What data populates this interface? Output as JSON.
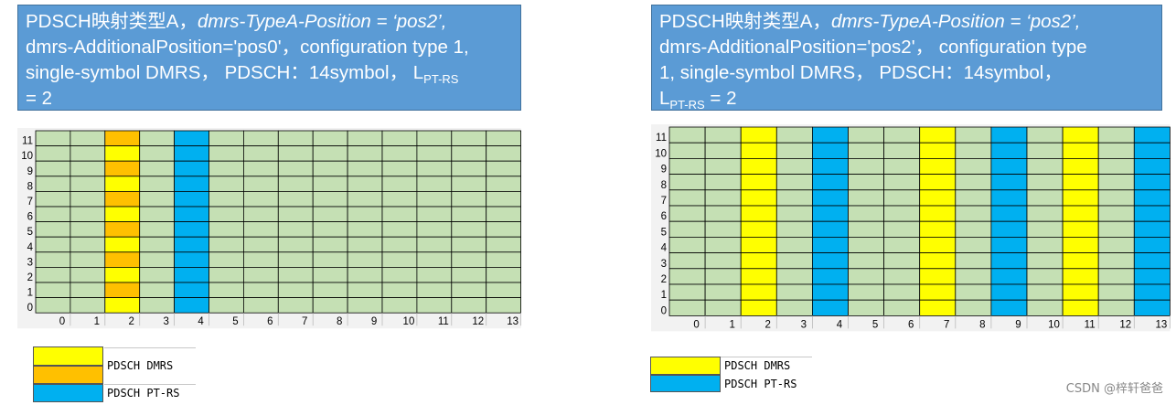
{
  "colors": {
    "pdsch": "#c5e0b4",
    "dmrs": "#ffff00",
    "dmrs_alt": "#ffc000",
    "ptrs": "#00b0f0",
    "grid_line": "#000000"
  },
  "left": {
    "title": {
      "part1": "PDSCH映射类型A，",
      "part2_italic": "dmrs-TypeA-Position = ‘pos2’,",
      "line2": "dmrs-AdditionalPosition='pos0'，configuration type 1,",
      "line3": "single-symbol DMRS， PDSCH：14symbol，   L",
      "sub": "PT-RS",
      "tail": " = 2"
    },
    "grid": {
      "symbols": [
        "0",
        "1",
        "2",
        "3",
        "4",
        "5",
        "6",
        "7",
        "8",
        "9",
        "10",
        "11",
        "12",
        "13"
      ],
      "subcarriers": [
        "11",
        "10",
        "9",
        "8",
        "7",
        "6",
        "5",
        "4",
        "3",
        "2",
        "1",
        "0"
      ],
      "dmrs_columns": [
        2
      ],
      "ptrs_columns": [
        4
      ]
    },
    "legend": [
      {
        "color": "dmrs",
        "label": "PDSCH DMRS"
      },
      {
        "color": "dmrs_alt",
        "label": ""
      },
      {
        "color": "ptrs",
        "label": "PDSCH PT-RS"
      }
    ]
  },
  "right": {
    "title": {
      "part1": "PDSCH映射类型A，",
      "part2_italic": "dmrs-TypeA-Position = ‘pos2’,",
      "line2": "dmrs-AdditionalPosition='pos2'， configuration type",
      "line3": "1, single-symbol DMRS， PDSCH：14symbol，",
      "sub_prefix": "L",
      "sub": "PT-RS",
      "tail": " = 2"
    },
    "grid": {
      "symbols": [
        "0",
        "1",
        "2",
        "3",
        "4",
        "5",
        "6",
        "7",
        "8",
        "9",
        "10",
        "11",
        "12",
        "13"
      ],
      "subcarriers": [
        "11",
        "10",
        "9",
        "8",
        "7",
        "6",
        "5",
        "4",
        "3",
        "2",
        "1",
        "0"
      ],
      "dmrs_columns": [
        2,
        7,
        11
      ],
      "ptrs_columns": [
        4,
        9,
        13
      ]
    },
    "legend": [
      {
        "color": "dmrs",
        "label": "PDSCH DMRS"
      },
      {
        "color": "ptrs",
        "label": "PDSCH PT-RS"
      }
    ]
  },
  "watermark": "CSDN @梓轩爸爸"
}
